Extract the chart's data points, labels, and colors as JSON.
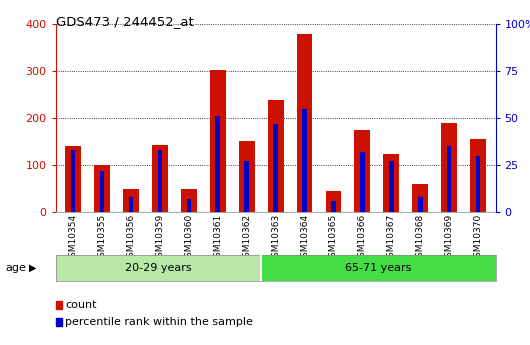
{
  "title": "GDS473 / 244452_at",
  "samples": [
    "GSM10354",
    "GSM10355",
    "GSM10356",
    "GSM10359",
    "GSM10360",
    "GSM10361",
    "GSM10362",
    "GSM10363",
    "GSM10364",
    "GSM10365",
    "GSM10366",
    "GSM10367",
    "GSM10368",
    "GSM10369",
    "GSM10370"
  ],
  "counts": [
    140,
    100,
    50,
    143,
    50,
    303,
    152,
    238,
    380,
    45,
    175,
    124,
    60,
    190,
    155
  ],
  "percentiles": [
    33,
    22,
    8,
    33,
    7,
    51,
    27,
    47,
    55,
    6,
    32,
    27,
    8,
    35,
    30
  ],
  "group1_label": "20-29 years",
  "group2_label": "65-71 years",
  "group1_count": 7,
  "group2_count": 8,
  "group1_color": "#b8e8a8",
  "group2_color": "#44dd44",
  "bar_color": "#cc1100",
  "percentile_color": "#0000cc",
  "age_label": "age",
  "legend1": "count",
  "legend2": "percentile rank within the sample",
  "ylim_left": [
    0,
    400
  ],
  "ylim_right": [
    0,
    100
  ],
  "yticks_left": [
    0,
    100,
    200,
    300,
    400
  ],
  "yticks_right": [
    0,
    25,
    50,
    75,
    100
  ],
  "ytick_labels_right": [
    "0",
    "25",
    "50",
    "75",
    "100%"
  ],
  "bar_width": 0.55,
  "left_axis_color": "#cc1100",
  "right_axis_color": "#0000cc"
}
